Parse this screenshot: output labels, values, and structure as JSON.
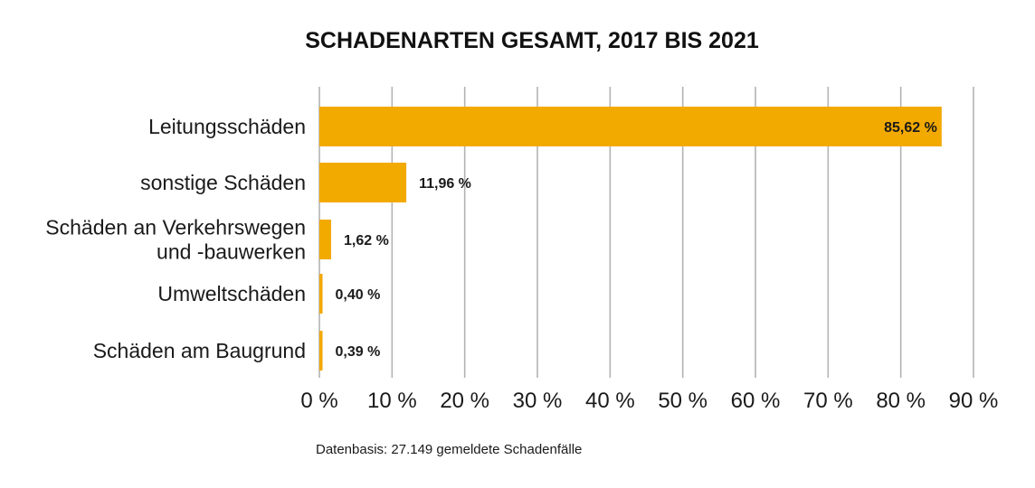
{
  "chart_data": {
    "type": "bar",
    "orientation": "horizontal",
    "title": "SCHADENARTEN GESAMT, 2017 BIS 2021",
    "categories": [
      [
        "Leitungsschäden"
      ],
      [
        "sonstige Schäden"
      ],
      [
        "Schäden an Verkehrswegen",
        "und -bauwerken"
      ],
      [
        "Umweltschäden"
      ],
      [
        "Schäden am Baugrund"
      ]
    ],
    "values": [
      85.62,
      11.96,
      1.62,
      0.4,
      0.39
    ],
    "value_labels": [
      "85,62 %",
      "11,96 %",
      "1,62 %",
      "0,40 %",
      "0,39 %"
    ],
    "xlim": [
      0,
      90
    ],
    "xticks": [
      0,
      10,
      20,
      30,
      40,
      50,
      60,
      70,
      80,
      90
    ],
    "xtick_labels": [
      "0 %",
      "10 %",
      "20 %",
      "30 %",
      "40 %",
      "50 %",
      "60 %",
      "70 %",
      "80 %",
      "90 %"
    ],
    "grid": "vertical",
    "bar_color": "#F2A900",
    "grid_color": "#b3b3b3"
  },
  "footnote": "Datenbasis: 27.149 gemeldete Schadenfälle"
}
